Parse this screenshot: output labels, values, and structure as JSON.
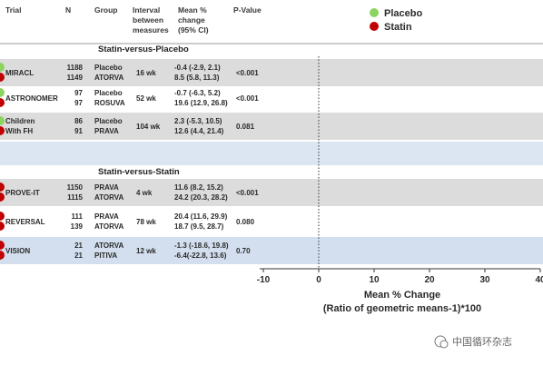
{
  "headers": {
    "trial": "Trial",
    "n": "N",
    "group": "Group",
    "interval": [
      "Interval",
      "between",
      "measures"
    ],
    "mean": [
      "Mean %",
      "change",
      "(95% CI)"
    ],
    "pvalue": "P-Value"
  },
  "legend": [
    {
      "name": "Placebo",
      "color": "#8dd35f"
    },
    {
      "name": "Statin",
      "color": "#c00000"
    }
  ],
  "sections": [
    {
      "title": "Statin-versus-Placebo"
    },
    {
      "title": "Statin-versus-Statin"
    }
  ],
  "rows": [
    {
      "section": 0,
      "trial": [
        "MIRACL"
      ],
      "interval": "16 wk",
      "pvalue": "<0.001",
      "shaded": true,
      "arms": [
        {
          "n": "1188",
          "group": "Placebo",
          "ci_text": "-0.4 (-2.9, 2.1)",
          "type": "placebo"
        },
        {
          "n": "1149",
          "group": "ATORVA",
          "ci_text": "8.5 (5.8, 11.3)",
          "type": "statin"
        }
      ]
    },
    {
      "section": 0,
      "trial": [
        "ASTRONOMER"
      ],
      "interval": "52 wk",
      "pvalue": "<0.001",
      "shaded": false,
      "arms": [
        {
          "n": "97",
          "group": "Placebo",
          "ci_text": "-0.7 (-6.3, 5.2)",
          "type": "placebo"
        },
        {
          "n": "97",
          "group": "ROSUVA",
          "ci_text": "19.6 (12.9, 26.8)",
          "type": "statin"
        }
      ]
    },
    {
      "section": 0,
      "trial": [
        "Children",
        "With FH"
      ],
      "interval": "104 wk",
      "pvalue": "0.081",
      "shaded": true,
      "arms": [
        {
          "n": "86",
          "group": "Placebo",
          "ci_text": "2.3 (-5.3, 10.5)",
          "type": "placebo"
        },
        {
          "n": "91",
          "group": "PRAVA",
          "ci_text": "12.6 (4.4, 21.4)",
          "type": "statin"
        }
      ]
    },
    {
      "section": 1,
      "trial": [
        "PROVE-IT"
      ],
      "interval": "4  wk",
      "pvalue": "<0.001",
      "shaded": true,
      "arms": [
        {
          "n": "1150",
          "group": "PRAVA",
          "ci_text": "11.6 (8.2, 15.2)",
          "type": "statin"
        },
        {
          "n": "1115",
          "group": "ATORVA",
          "ci_text": "24.2 (20.3, 28.2)",
          "type": "statin"
        }
      ]
    },
    {
      "section": 1,
      "trial": [
        "REVERSAL"
      ],
      "interval": "78 wk",
      "pvalue": "0.080",
      "shaded": false,
      "arms": [
        {
          "n": "111",
          "group": "PRAVA",
          "ci_text": "20.4 (11.6, 29.9)",
          "type": "statin"
        },
        {
          "n": "139",
          "group": "ATORVA",
          "ci_text": "18.7 (9.5, 28.7)",
          "type": "statin"
        }
      ]
    },
    {
      "section": 1,
      "trial": [
        "VISION"
      ],
      "interval": "12 wk",
      "pvalue": "0.70",
      "shaded": true,
      "arms": [
        {
          "n": "21",
          "group": "ATORVA",
          "ci_text": "-1.3 (-18.6, 19.8)",
          "type": "statin"
        },
        {
          "n": "21",
          "group": "PITIVA",
          "ci_text": "-6.4(-22.8, 13.6)",
          "type": "statin"
        }
      ]
    }
  ],
  "chart_data": {
    "type": "scatter",
    "subtype": "forest-plot",
    "xlim": [
      -10,
      40
    ],
    "xticks": [
      -10,
      0,
      10,
      20,
      30,
      40
    ],
    "xlabel": [
      "Mean % Change",
      "(Ratio of geometric means-1)*100"
    ],
    "reference_line": 0,
    "legend_position": "top-right",
    "series": [
      {
        "name": "Placebo",
        "color": "#8dd35f",
        "points": [
          {
            "label": "MIRACL Placebo",
            "value": -0.4,
            "lo": -2.9,
            "hi": 2.1
          },
          {
            "label": "ASTRONOMER Placebo",
            "value": -0.7,
            "lo": -6.3,
            "hi": 5.2
          },
          {
            "label": "Children With FH Placebo",
            "value": 2.3,
            "lo": -5.3,
            "hi": 10.5
          }
        ]
      },
      {
        "name": "Statin",
        "color": "#c00000",
        "points": [
          {
            "label": "MIRACL ATORVA",
            "value": 8.5,
            "lo": 5.8,
            "hi": 11.3
          },
          {
            "label": "ASTRONOMER ROSUVA",
            "value": 19.6,
            "lo": 12.9,
            "hi": 26.8
          },
          {
            "label": "Children With FH PRAVA",
            "value": 12.6,
            "lo": 4.4,
            "hi": 21.4
          },
          {
            "label": "PROVE-IT PRAVA",
            "value": 11.6,
            "lo": 8.2,
            "hi": 15.2
          },
          {
            "label": "PROVE-IT ATORVA",
            "value": 24.2,
            "lo": 20.3,
            "hi": 28.2
          },
          {
            "label": "REVERSAL PRAVA",
            "value": 20.4,
            "lo": 11.6,
            "hi": 29.9
          },
          {
            "label": "REVERSAL ATORVA",
            "value": 18.7,
            "lo": 9.5,
            "hi": 28.7
          },
          {
            "label": "VISION ATORVA",
            "value": -1.3,
            "lo": -18.6,
            "hi": 19.8
          },
          {
            "label": "VISION PITIVA",
            "value": -6.4,
            "lo": -22.8,
            "hi": 13.6
          }
        ]
      }
    ]
  },
  "watermark": "中国循环杂志"
}
